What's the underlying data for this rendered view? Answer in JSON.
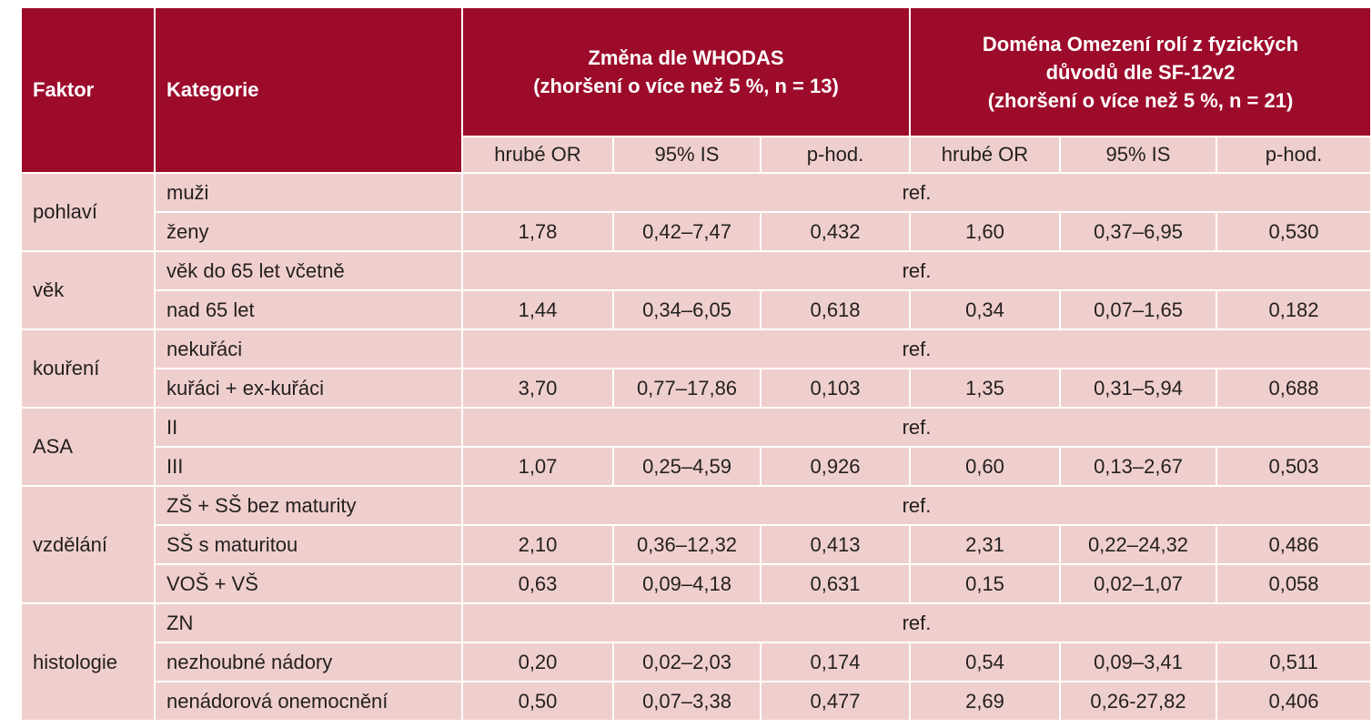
{
  "header": {
    "factor": "Faktor",
    "category": "Kategorie",
    "group1": {
      "line1": "Změna dle WHODAS",
      "line2": "(zhoršení o více než 5 %, n = 13)"
    },
    "group2": {
      "line1": "Doména Omezení rolí z fyzických",
      "line2": "důvodů dle SF-12v2",
      "line3": "(zhoršení o více než 5 %, n = 21)"
    },
    "sub": [
      "hrubé OR",
      "95% IS",
      "p-hod.",
      "hrubé OR",
      "95% IS",
      "p-hod."
    ]
  },
  "rows": [
    {
      "factor": "pohlaví",
      "category": "muži",
      "ref": "ref."
    },
    {
      "category": "ženy",
      "values": [
        "1,78",
        "0,42–7,47",
        "0,432",
        "1,60",
        "0,37–6,95",
        "0,530"
      ]
    },
    {
      "factor": "věk",
      "category": "věk do 65 let včetně",
      "ref": "ref."
    },
    {
      "category": "nad 65 let",
      "values": [
        "1,44",
        "0,34–6,05",
        "0,618",
        "0,34",
        "0,07–1,65",
        "0,182"
      ]
    },
    {
      "factor": "kouření",
      "category": "nekuřáci",
      "ref": "ref."
    },
    {
      "category": "kuřáci + ex-kuřáci",
      "values": [
        "3,70",
        "0,77–17,86",
        "0,103",
        "1,35",
        "0,31–5,94",
        "0,688"
      ]
    },
    {
      "factor": "ASA",
      "category": "II",
      "ref": "ref."
    },
    {
      "category": "III",
      "values": [
        "1,07",
        "0,25–4,59",
        "0,926",
        "0,60",
        "0,13–2,67",
        "0,503"
      ]
    },
    {
      "factor": "vzdělání",
      "category": "ZŠ + SŠ bez maturity",
      "ref": "ref."
    },
    {
      "category": "SŠ s maturitou",
      "values": [
        "2,10",
        "0,36–12,32",
        "0,413",
        "2,31",
        "0,22–24,32",
        "0,486"
      ]
    },
    {
      "category": "VOŠ + VŠ",
      "values": [
        "0,63",
        "0,09–4,18",
        "0,631",
        "0,15",
        "0,02–1,07",
        "0,058"
      ]
    },
    {
      "factor": "histologie",
      "category": "ZN",
      "ref": "ref."
    },
    {
      "category": "nezhoubné nádory",
      "values": [
        "0,20",
        "0,02–2,03",
        "0,174",
        "0,54",
        "0,09–3,41",
        "0,511"
      ]
    },
    {
      "category": "nenádorová onemocnění",
      "values": [
        "0,50",
        "0,07–3,38",
        "0,477",
        "2,69",
        "0,26-27,82",
        "0,406"
      ]
    }
  ]
}
